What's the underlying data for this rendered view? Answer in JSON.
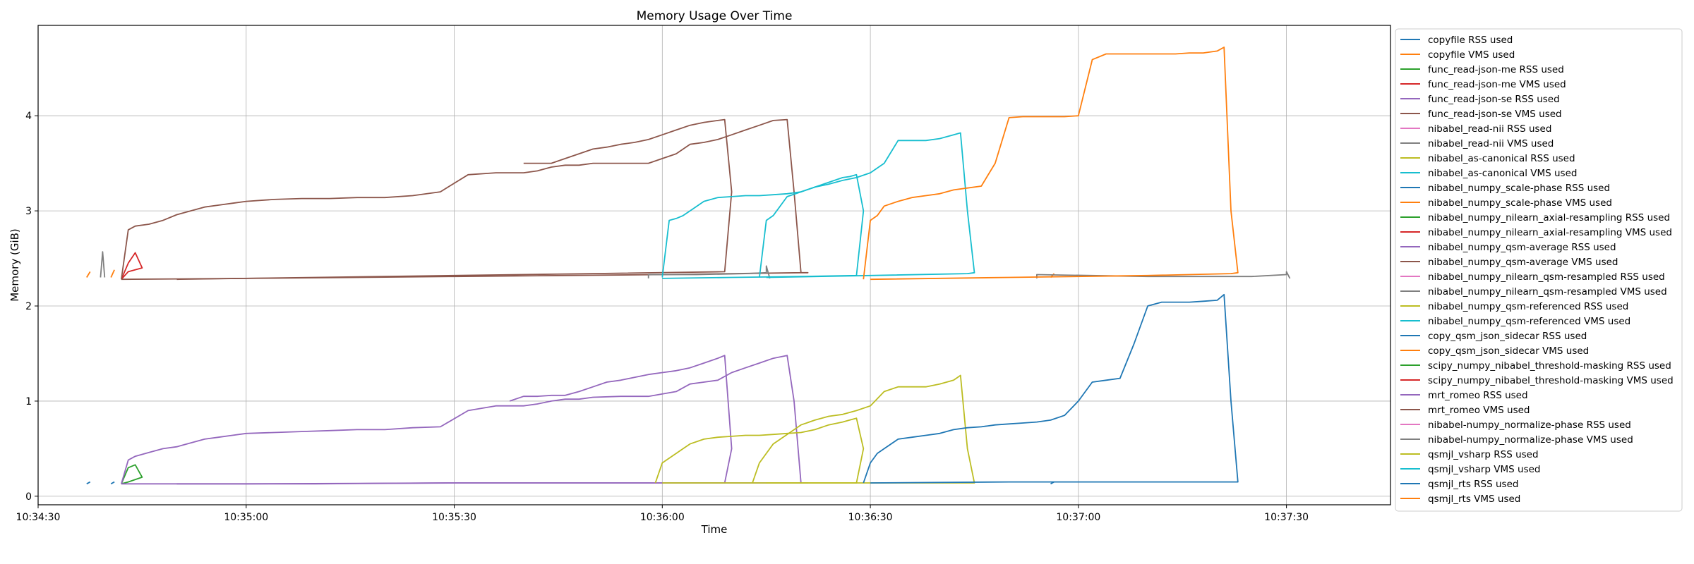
{
  "chart_data": {
    "type": "line",
    "title": "Memory Usage Over Time",
    "xlabel": "Time",
    "ylabel": "Memory (GiB)",
    "x_ticks": [
      "10:34:30",
      "10:35:00",
      "10:35:30",
      "10:36:00",
      "10:36:30",
      "10:37:00",
      "10:37:30"
    ],
    "y_ticks": [
      "0",
      "1",
      "2",
      "3",
      "4"
    ],
    "xlim_seconds_after_10_34_30": [
      0,
      195
    ],
    "ylim": [
      -0.09,
      4.95
    ],
    "grid": true,
    "legend_position": "outside-right",
    "series": [
      {
        "name": "copyfile RSS used",
        "color": "#1f77b4",
        "x": [
          7.0,
          7.5
        ],
        "y": [
          0.13,
          0.15
        ]
      },
      {
        "name": "copyfile VMS used",
        "color": "#ff7f0e",
        "x": [
          7.0,
          7.5
        ],
        "y": [
          2.3,
          2.36
        ]
      },
      {
        "name": "func_read-json-me RSS used",
        "color": "#2ca02c",
        "x": [
          12.0,
          13.0,
          14.0,
          15.0,
          13.0,
          12.0
        ],
        "y": [
          0.13,
          0.3,
          0.33,
          0.2,
          0.15,
          0.13
        ]
      },
      {
        "name": "func_read-json-me VMS used",
        "color": "#d62728",
        "x": [
          12.0,
          13.0,
          14.0,
          15.0,
          13.0,
          12.0
        ],
        "y": [
          2.28,
          2.45,
          2.56,
          2.4,
          2.36,
          2.28
        ]
      },
      {
        "name": "func_read-json-se RSS used",
        "color": "#9467bd",
        "x": [
          12.0,
          13.0,
          14.0,
          16.0,
          18.0,
          20.0,
          22.0,
          24.0,
          26.0,
          28.0,
          30.0,
          34.0,
          38.0,
          42.0,
          46.0,
          50.0,
          54.0,
          58.0,
          62.0,
          66.0,
          70.0,
          72.0,
          74.0,
          76.0,
          78.0,
          80.0,
          84.0,
          88.0,
          92.0,
          94.0,
          96.0,
          98.0,
          100.0,
          102.0,
          104.0,
          106.0,
          108.0,
          109.0,
          110.0,
          111.0,
          110.0,
          90.0,
          60.0,
          30.0,
          12.0
        ],
        "y": [
          0.13,
          0.38,
          0.42,
          0.46,
          0.5,
          0.52,
          0.56,
          0.6,
          0.62,
          0.64,
          0.66,
          0.67,
          0.68,
          0.69,
          0.7,
          0.7,
          0.72,
          0.73,
          0.9,
          0.95,
          0.95,
          0.97,
          1.0,
          1.02,
          1.02,
          1.04,
          1.05,
          1.05,
          1.1,
          1.18,
          1.2,
          1.22,
          1.3,
          1.35,
          1.4,
          1.45,
          1.48,
          1.0,
          0.14,
          0.14,
          0.14,
          0.14,
          0.14,
          0.13,
          0.13
        ]
      },
      {
        "name": "func_read-json-se VMS used",
        "color": "#8c564b",
        "x": [
          12.0,
          13.0,
          14.0,
          16.0,
          18.0,
          20.0,
          22.0,
          24.0,
          26.0,
          28.0,
          30.0,
          34.0,
          38.0,
          42.0,
          46.0,
          50.0,
          54.0,
          58.0,
          62.0,
          66.0,
          70.0,
          72.0,
          74.0,
          76.0,
          78.0,
          80.0,
          84.0,
          88.0,
          92.0,
          94.0,
          96.0,
          98.0,
          100.0,
          102.0,
          104.0,
          106.0,
          108.0,
          109.0,
          110.0,
          111.0,
          110.0,
          90.0,
          60.0,
          30.0,
          12.0
        ],
        "y": [
          2.28,
          2.8,
          2.84,
          2.86,
          2.9,
          2.96,
          3.0,
          3.04,
          3.06,
          3.08,
          3.1,
          3.12,
          3.13,
          3.13,
          3.14,
          3.14,
          3.16,
          3.2,
          3.38,
          3.4,
          3.4,
          3.42,
          3.46,
          3.48,
          3.48,
          3.5,
          3.5,
          3.5,
          3.6,
          3.7,
          3.72,
          3.75,
          3.8,
          3.85,
          3.9,
          3.95,
          3.96,
          3.2,
          2.35,
          2.35,
          2.35,
          2.33,
          2.31,
          2.29,
          2.28
        ]
      },
      {
        "name": "nibabel_read-nii RSS used",
        "color": "#e377c2",
        "x": [],
        "y": []
      },
      {
        "name": "nibabel_read-nii VMS used",
        "color": "#7f7f7f",
        "x": [
          9.0,
          9.3,
          9.6
        ],
        "y": [
          2.3,
          2.57,
          2.3
        ]
      },
      {
        "name": "nibabel_as-canonical RSS used",
        "color": "#bcbd22",
        "x": [],
        "y": []
      },
      {
        "name": "nibabel_as-canonical VMS used",
        "color": "#17becf",
        "x": [],
        "y": []
      },
      {
        "name": "nibabel_numpy_scale-phase RSS used",
        "color": "#1f77b4",
        "x": [
          10.5,
          11.0
        ],
        "y": [
          0.13,
          0.15
        ]
      },
      {
        "name": "nibabel_numpy_scale-phase VMS used",
        "color": "#ff7f0e",
        "x": [
          10.5,
          11.0
        ],
        "y": [
          2.3,
          2.38
        ]
      },
      {
        "name": "nibabel_numpy_nilearn_axial-resampling RSS used",
        "color": "#2ca02c",
        "x": [],
        "y": []
      },
      {
        "name": "nibabel_numpy_nilearn_axial-resampling VMS used",
        "color": "#d62728",
        "x": [],
        "y": []
      },
      {
        "name": "nibabel_numpy_qsm-average RSS used",
        "color": "#9467bd",
        "x": [
          68.0,
          70.0,
          72.0,
          74.0,
          76.0,
          78.0,
          80.0,
          82.0,
          84.0,
          86.0,
          88.0,
          90.0,
          92.0,
          94.0,
          96.0,
          98.0,
          99.0,
          100.0,
          99.0,
          80.0,
          60.0,
          40.0,
          20.0
        ],
        "y": [
          1.0,
          1.05,
          1.05,
          1.06,
          1.06,
          1.1,
          1.15,
          1.2,
          1.22,
          1.25,
          1.28,
          1.3,
          1.32,
          1.35,
          1.4,
          1.45,
          1.48,
          0.5,
          0.14,
          0.14,
          0.14,
          0.13,
          0.13
        ]
      },
      {
        "name": "nibabel_numpy_qsm-average VMS used",
        "color": "#8c564b",
        "x": [
          70.0,
          72.0,
          74.0,
          76.0,
          78.0,
          80.0,
          82.0,
          84.0,
          86.0,
          88.0,
          90.0,
          92.0,
          94.0,
          96.0,
          98.0,
          99.0,
          100.0,
          99.0,
          80.0,
          60.0,
          40.0,
          20.0
        ],
        "y": [
          3.5,
          3.5,
          3.5,
          3.55,
          3.6,
          3.65,
          3.67,
          3.7,
          3.72,
          3.75,
          3.8,
          3.85,
          3.9,
          3.93,
          3.95,
          3.96,
          3.2,
          2.36,
          2.34,
          2.32,
          2.3,
          2.28
        ]
      },
      {
        "name": "nibabel_numpy_nilearn_qsm-resampled RSS used",
        "color": "#e377c2",
        "x": [],
        "y": []
      },
      {
        "name": "nibabel_numpy_nilearn_qsm-resampled VMS used",
        "color": "#7f7f7f",
        "x": [
          88.0,
          88.0,
          95.0,
          102.0,
          105.0,
          105.0,
          105.5
        ],
        "y": [
          2.29,
          2.33,
          2.33,
          2.34,
          2.35,
          2.42,
          2.29
        ]
      },
      {
        "name": "nibabel_numpy_qsm-referenced RSS used",
        "color": "#bcbd22",
        "x": [
          89.0,
          90.0,
          91.0,
          92.0,
          93.0,
          94.0,
          96.0,
          98.0,
          100.0,
          102.0,
          104.0,
          106.0,
          108.0,
          110.0,
          112.0,
          114.0,
          116.0,
          117.0,
          118.0,
          119.0,
          118.0,
          110.0,
          100.0,
          90.0
        ],
        "y": [
          0.14,
          0.35,
          0.4,
          0.45,
          0.5,
          0.55,
          0.6,
          0.62,
          0.63,
          0.64,
          0.64,
          0.65,
          0.66,
          0.67,
          0.7,
          0.75,
          0.78,
          0.8,
          0.82,
          0.5,
          0.14,
          0.14,
          0.14,
          0.14
        ]
      },
      {
        "name": "nibabel_numpy_qsm-referenced VMS used",
        "color": "#17becf",
        "x": [
          90.0,
          91.0,
          92.0,
          93.0,
          94.0,
          96.0,
          98.0,
          100.0,
          102.0,
          104.0,
          106.0,
          108.0,
          110.0,
          112.0,
          114.0,
          116.0,
          117.0,
          118.0,
          119.0,
          118.0,
          110.0,
          100.0,
          90.0
        ],
        "y": [
          2.3,
          2.9,
          2.92,
          2.95,
          3.0,
          3.1,
          3.14,
          3.15,
          3.16,
          3.16,
          3.17,
          3.18,
          3.2,
          3.25,
          3.3,
          3.35,
          3.36,
          3.38,
          3.0,
          2.32,
          2.31,
          2.3,
          2.29
        ]
      },
      {
        "name": "copy_qsm_json_sidecar RSS used",
        "color": "#1f77b4",
        "x": [
          146.0,
          146.5
        ],
        "y": [
          0.13,
          0.15
        ]
      },
      {
        "name": "copy_qsm_json_sidecar VMS used",
        "color": "#ff7f0e",
        "x": [
          146.0,
          146.5
        ],
        "y": [
          2.3,
          2.34
        ]
      },
      {
        "name": "scipy_numpy_nibabel_threshold-masking RSS used",
        "color": "#2ca02c",
        "x": [],
        "y": []
      },
      {
        "name": "scipy_numpy_nibabel_threshold-masking VMS used",
        "color": "#d62728",
        "x": [],
        "y": []
      },
      {
        "name": "mrt_romeo RSS used",
        "color": "#9467bd",
        "x": [],
        "y": []
      },
      {
        "name": "mrt_romeo VMS used",
        "color": "#8c564b",
        "x": [],
        "y": []
      },
      {
        "name": "nibabel-numpy_normalize-phase RSS used",
        "color": "#e377c2",
        "x": [],
        "y": []
      },
      {
        "name": "nibabel-numpy_normalize-phase VMS used",
        "color": "#7f7f7f",
        "x": [
          144.0,
          144.0,
          160.0,
          175.0,
          180.0,
          180.0,
          180.5
        ],
        "y": [
          2.29,
          2.33,
          2.31,
          2.31,
          2.33,
          2.36,
          2.29
        ]
      },
      {
        "name": "qsmjl_vsharp RSS used",
        "color": "#bcbd22",
        "x": [
          103.0,
          104.0,
          105.0,
          106.0,
          108.0,
          110.0,
          112.0,
          114.0,
          116.0,
          118.0,
          120.0,
          122.0,
          124.0,
          126.0,
          128.0,
          130.0,
          132.0,
          133.0,
          134.0,
          135.0,
          134.0,
          120.0,
          105.0
        ],
        "y": [
          0.14,
          0.35,
          0.45,
          0.55,
          0.65,
          0.75,
          0.8,
          0.84,
          0.86,
          0.9,
          0.95,
          1.1,
          1.15,
          1.15,
          1.15,
          1.18,
          1.22,
          1.27,
          0.5,
          0.14,
          0.14,
          0.14,
          0.14
        ]
      },
      {
        "name": "qsmjl_vsharp VMS used",
        "color": "#17becf",
        "x": [
          104.0,
          105.0,
          106.0,
          108.0,
          110.0,
          112.0,
          114.0,
          116.0,
          118.0,
          120.0,
          122.0,
          124.0,
          126.0,
          128.0,
          130.0,
          132.0,
          133.0,
          134.0,
          135.0,
          134.0,
          120.0,
          105.0
        ],
        "y": [
          2.3,
          2.9,
          2.95,
          3.15,
          3.2,
          3.25,
          3.28,
          3.32,
          3.35,
          3.4,
          3.5,
          3.74,
          3.74,
          3.74,
          3.76,
          3.8,
          3.82,
          3.0,
          2.35,
          2.34,
          2.32,
          2.3
        ]
      },
      {
        "name": "qsmjl_rts RSS used",
        "color": "#1f77b4",
        "x": [
          119.0,
          120.0,
          121.0,
          122.0,
          124.0,
          126.0,
          128.0,
          130.0,
          132.0,
          134.0,
          136.0,
          138.0,
          140.0,
          142.0,
          144.0,
          146.0,
          148.0,
          150.0,
          152.0,
          154.0,
          156.0,
          158.0,
          160.0,
          162.0,
          164.0,
          166.0,
          168.0,
          170.0,
          171.0,
          172.0,
          173.0,
          172.0,
          160.0,
          140.0,
          120.0
        ],
        "y": [
          0.14,
          0.35,
          0.45,
          0.5,
          0.6,
          0.62,
          0.64,
          0.66,
          0.7,
          0.72,
          0.73,
          0.75,
          0.76,
          0.77,
          0.78,
          0.8,
          0.85,
          1.0,
          1.2,
          1.22,
          1.24,
          1.6,
          2.0,
          2.04,
          2.04,
          2.04,
          2.05,
          2.06,
          2.12,
          1.0,
          0.15,
          0.15,
          0.15,
          0.15,
          0.14
        ]
      },
      {
        "name": "qsmjl_rts VMS used",
        "color": "#ff7f0e",
        "x": [
          119.0,
          120.0,
          121.0,
          122.0,
          124.0,
          126.0,
          128.0,
          130.0,
          132.0,
          134.0,
          136.0,
          138.0,
          140.0,
          142.0,
          144.0,
          146.0,
          148.0,
          150.0,
          152.0,
          154.0,
          156.0,
          158.0,
          160.0,
          162.0,
          164.0,
          166.0,
          168.0,
          170.0,
          171.0,
          172.0,
          173.0,
          172.0,
          160.0,
          140.0,
          120.0
        ],
        "y": [
          2.28,
          2.9,
          2.95,
          3.05,
          3.1,
          3.14,
          3.16,
          3.18,
          3.22,
          3.24,
          3.26,
          3.5,
          3.98,
          3.99,
          3.99,
          3.99,
          3.99,
          4.0,
          4.59,
          4.65,
          4.65,
          4.65,
          4.65,
          4.65,
          4.65,
          4.66,
          4.66,
          4.68,
          4.72,
          3.0,
          2.35,
          2.34,
          2.32,
          2.3,
          2.28
        ]
      }
    ]
  }
}
